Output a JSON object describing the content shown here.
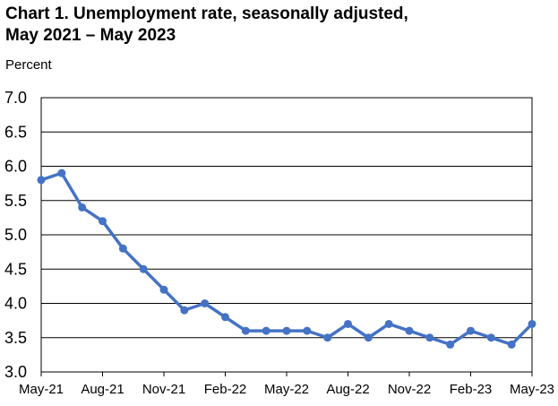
{
  "chart_data": {
    "type": "line",
    "title_line1": "Chart 1. Unemployment rate, seasonally adjusted,",
    "title_line2": "May 2021 – May 2023",
    "ylabel": "Percent",
    "xlabel": "",
    "ylim": [
      3.0,
      7.0
    ],
    "yticks": [
      "3.0",
      "3.5",
      "4.0",
      "4.5",
      "5.0",
      "5.5",
      "6.0",
      "6.5",
      "7.0"
    ],
    "x": [
      "May-21",
      "Jun-21",
      "Jul-21",
      "Aug-21",
      "Sep-21",
      "Oct-21",
      "Nov-21",
      "Dec-21",
      "Jan-22",
      "Feb-22",
      "Mar-22",
      "Apr-22",
      "May-22",
      "Jun-22",
      "Jul-22",
      "Aug-22",
      "Sep-22",
      "Oct-22",
      "Nov-22",
      "Dec-22",
      "Jan-23",
      "Feb-23",
      "Mar-23",
      "Apr-23",
      "May-23"
    ],
    "xtick_labels": [
      "May-21",
      "Aug-21",
      "Nov-21",
      "Feb-22",
      "May-22",
      "Aug-22",
      "Nov-22",
      "Feb-23",
      "May-23"
    ],
    "series": [
      {
        "values": [
          5.8,
          5.9,
          5.4,
          5.2,
          4.8,
          4.5,
          4.2,
          3.9,
          4.0,
          3.8,
          3.6,
          3.6,
          3.6,
          3.6,
          3.5,
          3.7,
          3.5,
          3.7,
          3.6,
          3.5,
          3.4,
          3.6,
          3.5,
          3.4,
          3.7
        ]
      }
    ],
    "line_color": "#4472C4",
    "grid": true
  }
}
